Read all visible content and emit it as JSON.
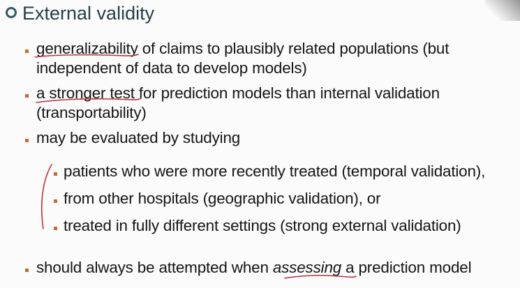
{
  "slide": {
    "title": "External validity",
    "items": [
      {
        "line1": {
          "underlined": "generalizability",
          "rest": " of claims to plausibly related populations (but"
        },
        "line2": "independent of data to develop models)"
      },
      {
        "line1": {
          "underlined": "a stronger test",
          "rest": " for prediction models than internal validation"
        },
        "line2": "(transportability)"
      },
      {
        "line1": "may be evaluated by studying"
      },
      {
        "sub": [
          "patients who were more recently treated (temporal validation),",
          "from other hospitals (geographic validation), or",
          "treated in fully different settings (strong external validation)"
        ]
      },
      {
        "line1": {
          "before": "should always be attempted when ",
          "emph": "assessing",
          "after": " a prediction model"
        }
      }
    ]
  },
  "colors": {
    "title": "#263f48",
    "bullet": "#c66a35",
    "annotation": "#c0303a"
  }
}
